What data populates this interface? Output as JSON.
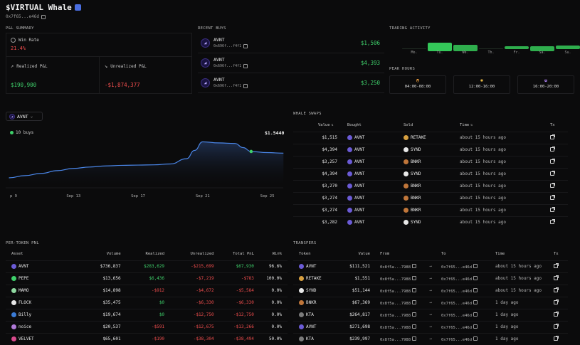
{
  "header": {
    "title": "$VIRTUAL Whale",
    "address": "0x7f65...e46d"
  },
  "pnl": {
    "label": "P&L SUMMARY",
    "win_rate_label": "Win Rate",
    "win_rate": "21.4%",
    "realized_label": "Realized P&L",
    "realized": "$190,900",
    "unrealized_label": "Unrealized P&L",
    "unrealized": "-$1,874,377"
  },
  "recent_buys": {
    "label": "RECENT BUYS",
    "items": [
      {
        "token": "AVNT",
        "addr": "0x696f...f4f1",
        "value": "$1,506"
      },
      {
        "token": "AVNT",
        "addr": "0x696f...f4f1",
        "value": "$4,393"
      },
      {
        "token": "AVNT",
        "addr": "0x696f...f4f1",
        "value": "$3,250"
      }
    ]
  },
  "trading": {
    "label": "TRADING ACTIVITY",
    "days": [
      "Mo.",
      "Tu.",
      "We.",
      "Th.",
      "Fr.",
      "Sa.",
      "Su."
    ],
    "levels": [
      0.05,
      1.0,
      0.75,
      0.05,
      0.35,
      0.55,
      0.45
    ],
    "peak_label": "PEAK HOURS",
    "peaks": [
      {
        "icon": "sunrise-icon",
        "range": "04:00-08:00"
      },
      {
        "icon": "sun-icon",
        "range": "12:00-16:00"
      },
      {
        "icon": "sunset-icon",
        "range": "16:00-20:00"
      }
    ]
  },
  "chart_selector": {
    "token": "AVNT"
  },
  "chart_data": {
    "type": "area",
    "legend": "10 buys",
    "current_value_label": "$1.5440",
    "x_ticks": [
      "p 9",
      "Sep 13",
      "Sep 17",
      "Sep 21",
      "Sep 25"
    ],
    "x": [
      9,
      10,
      11,
      12,
      13,
      14,
      15,
      16,
      17,
      18,
      19,
      20,
      20.5,
      21,
      22,
      23,
      23.5,
      24,
      25,
      26
    ],
    "y": [
      0.36,
      0.44,
      0.52,
      0.62,
      0.7,
      0.75,
      0.79,
      0.81,
      0.82,
      0.83,
      0.86,
      1.05,
      1.35,
      1.66,
      1.62,
      1.6,
      1.45,
      1.31,
      1.27,
      1.25
    ],
    "ylim": [
      0,
      1.9
    ],
    "highlight": {
      "x": 24,
      "y": 1.31
    }
  },
  "whale_swaps": {
    "label": "WHALE SWAPS",
    "columns": [
      "Value",
      "Bought",
      "Sold",
      "Time",
      "Tx"
    ],
    "rows": [
      {
        "value": "$1,515",
        "bought": "AVNT",
        "sold": "RETAKE",
        "time": "about 15 hours ago"
      },
      {
        "value": "$4,394",
        "bought": "AVNT",
        "sold": "SYND",
        "time": "about 15 hours ago"
      },
      {
        "value": "$3,257",
        "bought": "AVNT",
        "sold": "BNKR",
        "time": "about 15 hours ago"
      },
      {
        "value": "$4,394",
        "bought": "AVNT",
        "sold": "SYND",
        "time": "about 15 hours ago"
      },
      {
        "value": "$3,270",
        "bought": "AVNT",
        "sold": "BNKR",
        "time": "about 15 hours ago"
      },
      {
        "value": "$3,274",
        "bought": "AVNT",
        "sold": "BNKR",
        "time": "about 15 hours ago"
      },
      {
        "value": "$3,274",
        "bought": "AVNT",
        "sold": "BNKR",
        "time": "about 15 hours ago"
      },
      {
        "value": "$3,282",
        "bought": "AVNT",
        "sold": "SYND",
        "time": "about 15 hours ago"
      }
    ]
  },
  "per_token": {
    "label": "PER-TOKEN PNL",
    "columns": [
      "Asset",
      "Volume",
      "Realized",
      "Unrealized",
      "Total PnL",
      "Win%"
    ],
    "rows": [
      {
        "asset": "AVNT",
        "color": "#6b5bd6",
        "volume": "$736,837",
        "realized": "$283,629",
        "r_pos": true,
        "unrealized": "-$215,699",
        "total": "$67,930",
        "t_pos": true,
        "win": "96.6%"
      },
      {
        "asset": "PEPE",
        "color": "#3ecf6a",
        "volume": "$13,656",
        "realized": "$6,436",
        "r_pos": true,
        "unrealized": "-$7,219",
        "total": "-$783",
        "t_pos": false,
        "win": "100.0%"
      },
      {
        "asset": "MAMO",
        "color": "#8fd8a0",
        "volume": "$14,898",
        "realized": "-$912",
        "r_pos": false,
        "unrealized": "-$4,672",
        "total": "-$5,584",
        "t_pos": false,
        "win": "0.0%"
      },
      {
        "asset": "FLOCK",
        "color": "#e8e8e8",
        "volume": "$35,475",
        "realized": "$0",
        "r_pos": true,
        "unrealized": "-$6,330",
        "total": "-$6,330",
        "t_pos": false,
        "win": "0.0%"
      },
      {
        "asset": "Billy",
        "color": "#3a7bd5",
        "volume": "$19,674",
        "realized": "$0",
        "r_pos": true,
        "unrealized": "-$12,750",
        "total": "-$12,750",
        "t_pos": false,
        "win": "0.0%"
      },
      {
        "asset": "noice",
        "color": "#b07ad8",
        "volume": "$20,537",
        "realized": "-$591",
        "r_pos": false,
        "unrealized": "-$12,675",
        "total": "-$13,266",
        "t_pos": false,
        "win": "0.0%"
      },
      {
        "asset": "VELVET",
        "color": "#d84a8c",
        "volume": "$65,601",
        "realized": "-$190",
        "r_pos": false,
        "unrealized": "-$38,304",
        "total": "-$38,494",
        "t_pos": false,
        "win": "50.0%"
      }
    ]
  },
  "transfers": {
    "label": "TRANSFERS",
    "columns": [
      "Token",
      "Value",
      "From",
      "To",
      "Time",
      "Tx"
    ],
    "rows": [
      {
        "token": "AVNT",
        "color": "#6b5bd6",
        "value": "$111,521",
        "from": "0x8f5a...7988",
        "to": "0x7f65...e46d",
        "time": "about 15 hours ago"
      },
      {
        "token": "RETAKE",
        "color": "#d8a040",
        "value": "$1,551",
        "from": "0x8f5a...7988",
        "to": "0x7f65...e46d",
        "time": "about 15 hours ago"
      },
      {
        "token": "SYND",
        "color": "#e8e8e8",
        "value": "$51,144",
        "from": "0x8f5a...7988",
        "to": "0x7f65...e46d",
        "time": "about 15 hours ago"
      },
      {
        "token": "BNKR",
        "color": "#c0763a",
        "value": "$67,369",
        "from": "0x8f5a...7988",
        "to": "0x7f65...e46d",
        "time": "1 day ago"
      },
      {
        "token": "KTA",
        "color": "#7a7a7a",
        "value": "$264,817",
        "from": "0x8f5a...7988",
        "to": "0x7f65...e46d",
        "time": "1 day ago"
      },
      {
        "token": "AVNT",
        "color": "#6b5bd6",
        "value": "$271,698",
        "from": "0x8f5a...7988",
        "to": "0x7f65...e46d",
        "time": "1 day ago"
      },
      {
        "token": "KTA",
        "color": "#7a7a7a",
        "value": "$239,997",
        "from": "0x8f5a...7988",
        "to": "0x7f65...e46d",
        "time": "1 day ago"
      }
    ]
  }
}
